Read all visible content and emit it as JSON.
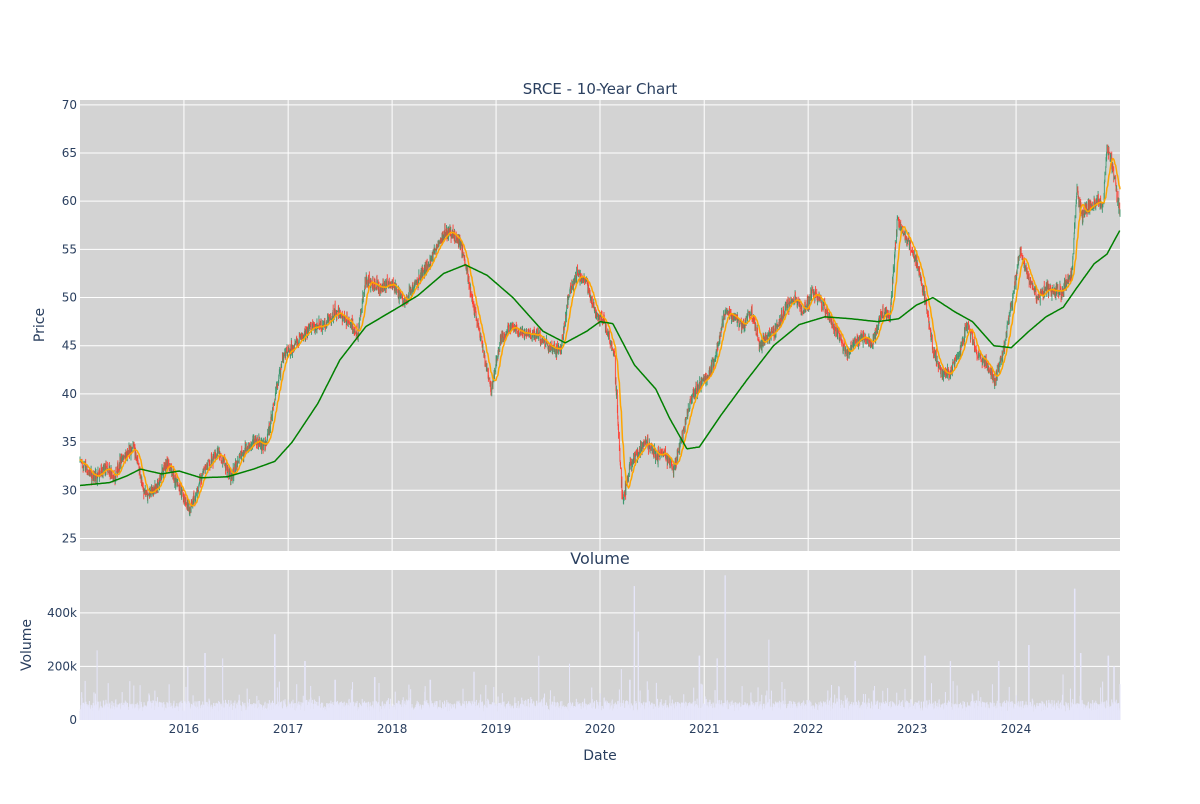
{
  "chart_data": [
    {
      "type": "candlestick",
      "title": "SRCE - 10-Year Chart",
      "xlabel": "",
      "ylabel": "Price",
      "ylim": [
        23.7,
        70.5
      ],
      "yticks": [
        25,
        30,
        35,
        40,
        45,
        50,
        55,
        60,
        65,
        70
      ],
      "xticks": [
        "2016",
        "2017",
        "2018",
        "2019",
        "2020",
        "2021",
        "2022",
        "2023",
        "2024"
      ],
      "xrange": [
        "2015-01-01",
        "2024-12-31"
      ],
      "grid": true,
      "colors": {
        "plot_bg": "#d3d3d3",
        "grid": "#ffffff",
        "up": "#3d9970",
        "down": "#ff4136",
        "ma_short": "#ffa500",
        "ma_long": "#008000",
        "text": "#2a3f5f"
      },
      "price_path": [
        [
          "2015-01-01",
          33.0
        ],
        [
          "2015-02-15",
          31.3
        ],
        [
          "2015-04-01",
          32.3
        ],
        [
          "2015-05-01",
          31.5
        ],
        [
          "2015-06-01",
          33.4
        ],
        [
          "2015-07-10",
          34.7
        ],
        [
          "2015-08-15",
          29.6
        ],
        [
          "2015-10-01",
          30.5
        ],
        [
          "2015-11-01",
          33.2
        ],
        [
          "2015-12-01",
          31.3
        ],
        [
          "2016-01-20",
          27.8
        ],
        [
          "2016-02-20",
          30.2
        ],
        [
          "2016-03-15",
          32.3
        ],
        [
          "2016-05-01",
          34.0
        ],
        [
          "2016-06-15",
          31.3
        ],
        [
          "2016-07-15",
          33.5
        ],
        [
          "2016-09-01",
          35.2
        ],
        [
          "2016-10-15",
          34.5
        ],
        [
          "2016-11-15",
          39.5
        ],
        [
          "2016-12-15",
          44.0
        ],
        [
          "2017-02-01",
          45.3
        ],
        [
          "2017-03-15",
          46.8
        ],
        [
          "2017-05-01",
          47.0
        ],
        [
          "2017-06-15",
          48.5
        ],
        [
          "2017-08-01",
          47.5
        ],
        [
          "2017-09-01",
          46.0
        ],
        [
          "2017-10-01",
          52.0
        ],
        [
          "2017-11-15",
          51.0
        ],
        [
          "2018-01-01",
          51.5
        ],
        [
          "2018-02-15",
          49.5
        ],
        [
          "2018-03-15",
          51.0
        ],
        [
          "2018-05-01",
          53.0
        ],
        [
          "2018-06-15",
          55.8
        ],
        [
          "2018-07-15",
          57.0
        ],
        [
          "2018-08-20",
          56.2
        ],
        [
          "2018-09-15",
          53.5
        ],
        [
          "2018-10-15",
          49.0
        ],
        [
          "2018-11-15",
          45.0
        ],
        [
          "2018-12-15",
          40.2
        ],
        [
          "2019-01-15",
          45.5
        ],
        [
          "2019-02-15",
          46.8
        ],
        [
          "2019-04-01",
          46.5
        ],
        [
          "2019-05-15",
          46.3
        ],
        [
          "2019-07-01",
          45.0
        ],
        [
          "2019-08-15",
          44.5
        ],
        [
          "2019-09-15",
          50.5
        ],
        [
          "2019-10-15",
          52.5
        ],
        [
          "2019-11-15",
          51.5
        ],
        [
          "2019-12-15",
          48.5
        ],
        [
          "2020-01-15",
          47.5
        ],
        [
          "2020-02-20",
          44.0
        ],
        [
          "2020-03-20",
          28.5
        ],
        [
          "2020-04-15",
          32.5
        ],
        [
          "2020-05-15",
          34.0
        ],
        [
          "2020-06-15",
          35.0
        ],
        [
          "2020-07-15",
          33.5
        ],
        [
          "2020-08-15",
          34.0
        ],
        [
          "2020-09-15",
          32.0
        ],
        [
          "2020-10-15",
          35.5
        ],
        [
          "2020-11-15",
          39.5
        ],
        [
          "2020-12-15",
          41.0
        ],
        [
          "2021-01-15",
          42.0
        ],
        [
          "2021-02-15",
          44.5
        ],
        [
          "2021-03-15",
          48.5
        ],
        [
          "2021-04-15",
          48.0
        ],
        [
          "2021-05-15",
          47.0
        ],
        [
          "2021-06-15",
          48.5
        ],
        [
          "2021-07-15",
          45.0
        ],
        [
          "2021-08-15",
          46.0
        ],
        [
          "2021-09-15",
          47.0
        ],
        [
          "2021-10-15",
          49.0
        ],
        [
          "2021-11-15",
          50.0
        ],
        [
          "2021-12-15",
          48.5
        ],
        [
          "2022-01-15",
          50.5
        ],
        [
          "2022-02-15",
          49.5
        ],
        [
          "2022-03-15",
          48.0
        ],
        [
          "2022-04-15",
          46.5
        ],
        [
          "2022-05-15",
          44.0
        ],
        [
          "2022-06-15",
          45.5
        ],
        [
          "2022-07-15",
          46.0
        ],
        [
          "2022-08-15",
          45.0
        ],
        [
          "2022-09-15",
          48.5
        ],
        [
          "2022-10-15",
          48.0
        ],
        [
          "2022-11-10",
          58.0
        ],
        [
          "2022-12-15",
          56.0
        ],
        [
          "2023-01-15",
          54.0
        ],
        [
          "2023-02-15",
          50.0
        ],
        [
          "2023-03-15",
          44.5
        ],
        [
          "2023-04-15",
          42.0
        ],
        [
          "2023-05-15",
          42.5
        ],
        [
          "2023-06-15",
          44.0
        ],
        [
          "2023-07-15",
          47.5
        ],
        [
          "2023-08-15",
          44.0
        ],
        [
          "2023-09-15",
          43.5
        ],
        [
          "2023-10-15",
          41.5
        ],
        [
          "2023-11-15",
          44.0
        ],
        [
          "2023-12-15",
          49.0
        ],
        [
          "2024-01-15",
          55.0
        ],
        [
          "2024-02-15",
          52.0
        ],
        [
          "2024-03-15",
          50.0
        ],
        [
          "2024-04-15",
          51.0
        ],
        [
          "2024-05-15",
          50.5
        ],
        [
          "2024-06-15",
          51.0
        ],
        [
          "2024-07-15",
          52.5
        ],
        [
          "2024-08-01",
          61.0
        ],
        [
          "2024-08-20",
          58.5
        ],
        [
          "2024-09-15",
          59.5
        ],
        [
          "2024-10-15",
          60.0
        ],
        [
          "2024-11-01",
          59.5
        ],
        [
          "2024-11-15",
          65.5
        ],
        [
          "2024-12-05",
          63.5
        ],
        [
          "2024-12-31",
          58.5
        ]
      ],
      "ma_long_path": [
        [
          "2015-01-01",
          30.5
        ],
        [
          "2015-04-15",
          30.8
        ],
        [
          "2015-06-15",
          31.5
        ],
        [
          "2015-08-01",
          32.2
        ],
        [
          "2015-10-15",
          31.7
        ],
        [
          "2015-12-15",
          32.0
        ],
        [
          "2016-03-01",
          31.3
        ],
        [
          "2016-06-01",
          31.4
        ],
        [
          "2016-09-01",
          32.2
        ],
        [
          "2016-11-15",
          33.0
        ],
        [
          "2017-01-15",
          35.0
        ],
        [
          "2017-04-15",
          39.0
        ],
        [
          "2017-07-01",
          43.5
        ],
        [
          "2017-10-01",
          47.0
        ],
        [
          "2018-01-01",
          48.6
        ],
        [
          "2018-04-01",
          50.2
        ],
        [
          "2018-07-01",
          52.5
        ],
        [
          "2018-09-15",
          53.4
        ],
        [
          "2018-12-01",
          52.3
        ],
        [
          "2019-03-01",
          50.0
        ],
        [
          "2019-06-15",
          46.5
        ],
        [
          "2019-09-01",
          45.3
        ],
        [
          "2019-11-15",
          46.5
        ],
        [
          "2020-01-01",
          47.5
        ],
        [
          "2020-02-15",
          47.3
        ],
        [
          "2020-05-01",
          43.0
        ],
        [
          "2020-07-15",
          40.5
        ],
        [
          "2020-09-01",
          37.5
        ],
        [
          "2020-11-01",
          34.3
        ],
        [
          "2020-12-15",
          34.5
        ],
        [
          "2021-03-01",
          37.8
        ],
        [
          "2021-06-01",
          41.5
        ],
        [
          "2021-09-01",
          45.0
        ],
        [
          "2021-12-01",
          47.2
        ],
        [
          "2022-03-01",
          48.0
        ],
        [
          "2022-06-01",
          47.8
        ],
        [
          "2022-09-01",
          47.5
        ],
        [
          "2022-11-15",
          47.8
        ],
        [
          "2023-01-15",
          49.2
        ],
        [
          "2023-03-15",
          50.0
        ],
        [
          "2023-06-01",
          48.5
        ],
        [
          "2023-08-01",
          47.5
        ],
        [
          "2023-10-15",
          45.0
        ],
        [
          "2023-12-15",
          44.8
        ],
        [
          "2024-02-15",
          46.5
        ],
        [
          "2024-04-15",
          48.0
        ],
        [
          "2024-06-15",
          49.0
        ],
        [
          "2024-08-01",
          51.0
        ],
        [
          "2024-10-01",
          53.5
        ],
        [
          "2024-11-15",
          54.5
        ],
        [
          "2024-12-31",
          57.0
        ]
      ],
      "volume_spikes": [
        [
          "2015-03-01",
          260000
        ],
        [
          "2015-08-01",
          130000
        ],
        [
          "2016-01-15",
          200000
        ],
        [
          "2016-03-15",
          250000
        ],
        [
          "2016-05-15",
          230000
        ],
        [
          "2016-11-15",
          320000
        ],
        [
          "2017-03-01",
          220000
        ],
        [
          "2017-06-15",
          150000
        ],
        [
          "2017-11-01",
          160000
        ],
        [
          "2018-05-15",
          150000
        ],
        [
          "2018-10-15",
          180000
        ],
        [
          "2019-06-01",
          240000
        ],
        [
          "2019-09-15",
          210000
        ],
        [
          "2020-03-15",
          190000
        ],
        [
          "2020-04-15",
          150000
        ],
        [
          "2020-05-01",
          500000
        ],
        [
          "2020-05-15",
          330000
        ],
        [
          "2020-12-15",
          240000
        ],
        [
          "2021-02-15",
          230000
        ],
        [
          "2021-03-15",
          540000
        ],
        [
          "2021-08-15",
          300000
        ],
        [
          "2022-06-15",
          220000
        ],
        [
          "2023-02-15",
          240000
        ],
        [
          "2023-05-15",
          220000
        ],
        [
          "2023-11-01",
          220000
        ],
        [
          "2024-02-15",
          280000
        ],
        [
          "2024-06-15",
          170000
        ],
        [
          "2024-07-25",
          490000
        ],
        [
          "2024-08-15",
          250000
        ],
        [
          "2024-11-20",
          240000
        ],
        [
          "2024-12-10",
          200000
        ]
      ]
    },
    {
      "type": "bar",
      "title": "Volume",
      "xlabel": "Date",
      "ylabel": "Volume",
      "ylim": [
        0,
        560000
      ],
      "yticks": [
        {
          "value": 0,
          "label": "0"
        },
        {
          "value": 200000,
          "label": "200k"
        },
        {
          "value": 400000,
          "label": "400k"
        }
      ],
      "xticks": [
        "2016",
        "2017",
        "2018",
        "2019",
        "2020",
        "2021",
        "2022",
        "2023",
        "2024"
      ],
      "grid": true,
      "colors": {
        "plot_bg": "#d3d3d3",
        "bar": "#e6e6fa"
      }
    }
  ]
}
